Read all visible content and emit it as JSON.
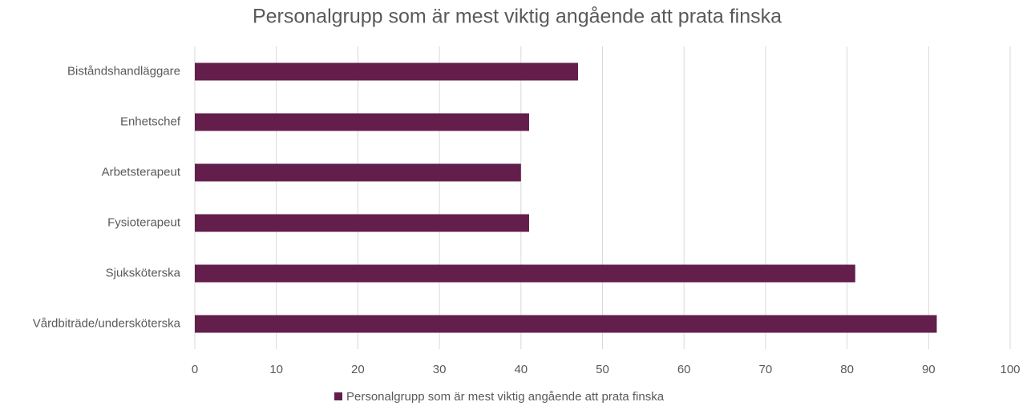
{
  "chart_data": {
    "type": "bar",
    "orientation": "horizontal",
    "title": "Personalgrupp som är mest viktig angående att prata finska",
    "categories": [
      "Biståndshandläggare",
      "Enhetschef",
      "Arbetsterapeut",
      "Fysioterapeut",
      "Sjuksköterska",
      "Vårdbiträde/undersköterska"
    ],
    "series": [
      {
        "name": "Personalgrupp som är mest viktig angående att prata finska",
        "color": "#641e4b",
        "values": [
          47,
          41,
          40,
          41,
          81,
          91
        ]
      }
    ],
    "xlim": [
      0,
      100
    ],
    "xticks": [
      0,
      10,
      20,
      30,
      40,
      50,
      60,
      70,
      80,
      90,
      100
    ],
    "grid": true,
    "legend": "bottom"
  }
}
